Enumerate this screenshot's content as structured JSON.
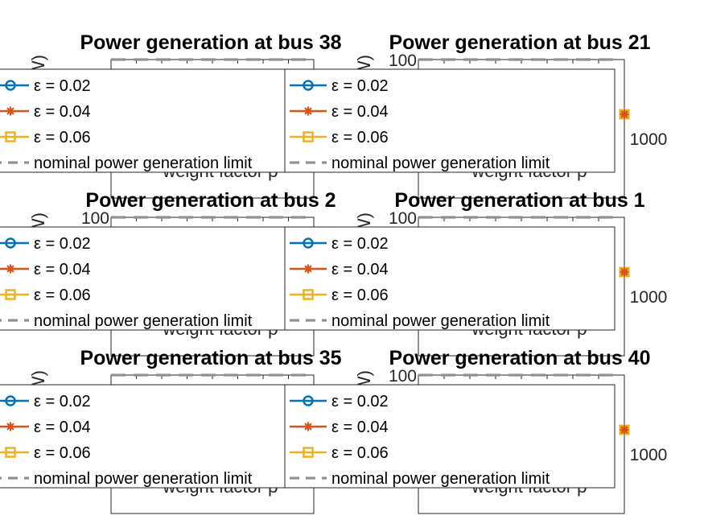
{
  "figure": {
    "background": "#ffffff"
  },
  "chart_data": [
    {
      "type": "line",
      "title": "Power generation at bus 38",
      "xlabel": "weight factor ρ",
      "ylabel": "(MW)",
      "yticks": [],
      "xticks": [],
      "series": [
        {
          "name": "ε  = 0.02",
          "color": "#0072bd",
          "marker": "circle",
          "values": []
        },
        {
          "name": "ε  = 0.04",
          "color": "#d95319",
          "marker": "asterisk",
          "values": []
        },
        {
          "name": "ε  = 0.06",
          "color": "#edb120",
          "marker": "square",
          "values": []
        },
        {
          "name": "nominal power generation limit",
          "color": "#909090",
          "style": "dashed",
          "values": []
        }
      ],
      "legend": "overlapping plot area, left"
    },
    {
      "type": "line",
      "title": "Power generation at bus 21",
      "xlabel": "weight factor ρ",
      "ylabel": "(MW)",
      "yticks": [
        "100"
      ],
      "xticks": [
        "1000"
      ],
      "series": [
        {
          "name": "ε  = 0.02",
          "color": "#0072bd",
          "marker": "circle",
          "values": []
        },
        {
          "name": "ε  = 0.04",
          "color": "#d95319",
          "marker": "asterisk",
          "values": []
        },
        {
          "name": "ε  = 0.06",
          "color": "#edb120",
          "marker": "square",
          "values": []
        },
        {
          "name": "nominal power generation limit",
          "color": "#909090",
          "style": "dashed",
          "values": [
            100
          ]
        }
      ],
      "legend": "overlapping plot area, left"
    },
    {
      "type": "line",
      "title": "Power generation at bus 2",
      "xlabel": "weight factor ρ",
      "ylabel": "(MW)",
      "yticks": [
        "100"
      ],
      "xticks": [],
      "series": [
        {
          "name": "ε  = 0.02",
          "color": "#0072bd",
          "marker": "circle",
          "values": []
        },
        {
          "name": "ε  = 0.04",
          "color": "#d95319",
          "marker": "asterisk",
          "values": []
        },
        {
          "name": "ε  = 0.06",
          "color": "#edb120",
          "marker": "square",
          "values": []
        },
        {
          "name": "nominal power generation limit",
          "color": "#909090",
          "style": "dashed",
          "values": [
            100
          ]
        }
      ],
      "legend": "overlapping plot area, left"
    },
    {
      "type": "line",
      "title": "Power generation at bus 1",
      "xlabel": "weight factor ρ",
      "ylabel": "(MW)",
      "yticks": [
        "100"
      ],
      "xticks": [
        "1000"
      ],
      "series": [
        {
          "name": "ε  = 0.02",
          "color": "#0072bd",
          "marker": "circle",
          "values": []
        },
        {
          "name": "ε  = 0.04",
          "color": "#d95319",
          "marker": "asterisk",
          "values": []
        },
        {
          "name": "ε  = 0.06",
          "color": "#edb120",
          "marker": "square",
          "values": []
        },
        {
          "name": "nominal power generation limit",
          "color": "#909090",
          "style": "dashed",
          "values": [
            100
          ]
        }
      ],
      "legend": "overlapping plot area, left"
    },
    {
      "type": "line",
      "title": "Power generation at bus 35",
      "xlabel": "weight factor ρ",
      "ylabel": "(MW)",
      "yticks": [],
      "xticks": [],
      "series": [
        {
          "name": "ε  = 0.02",
          "color": "#0072bd",
          "marker": "circle",
          "values": []
        },
        {
          "name": "ε  = 0.04",
          "color": "#d95319",
          "marker": "asterisk",
          "values": []
        },
        {
          "name": "ε  = 0.06",
          "color": "#edb120",
          "marker": "square",
          "values": []
        },
        {
          "name": "nominal power generation limit",
          "color": "#909090",
          "style": "dashed",
          "values": []
        }
      ],
      "legend": "overlapping plot area, left"
    },
    {
      "type": "line",
      "title": "Power generation at bus 40",
      "xlabel": "weight factor ρ",
      "ylabel": "(MW)",
      "yticks": [
        "100"
      ],
      "xticks": [
        "1000"
      ],
      "series": [
        {
          "name": "ε  = 0.02",
          "color": "#0072bd",
          "marker": "circle",
          "values": []
        },
        {
          "name": "ε  = 0.04",
          "color": "#d95319",
          "marker": "asterisk",
          "values": []
        },
        {
          "name": "ε  = 0.06",
          "color": "#edb120",
          "marker": "square",
          "values": []
        },
        {
          "name": "nominal power generation limit",
          "color": "#909090",
          "style": "dashed",
          "values": [
            100
          ]
        }
      ],
      "legend": "overlapping plot area, left"
    }
  ]
}
